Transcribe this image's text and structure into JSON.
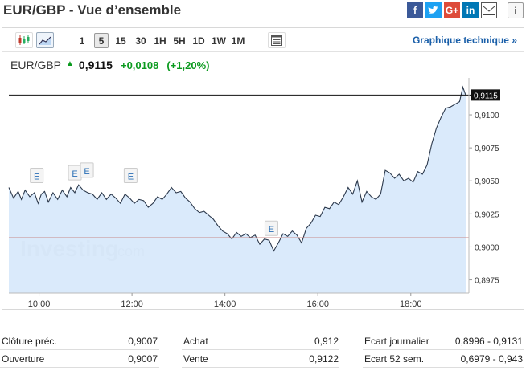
{
  "title": "EUR/GBP - Vue d’ensemble",
  "toolbar": {
    "timeframes": [
      "1",
      "5",
      "15",
      "30",
      "1H",
      "5H",
      "1D",
      "1W",
      "1M"
    ],
    "active_timeframe": "5",
    "technical_link": "Graphique technique »"
  },
  "quote": {
    "pair": "EUR/GBP",
    "price": "0,9115",
    "change": "+0,0108",
    "change_pct": "(+1,20%)"
  },
  "chart_data": {
    "type": "area",
    "watermark": "Investing",
    "watermark_suffix": ".com",
    "x_ticks": [
      "10:00",
      "12:00",
      "14:00",
      "16:00",
      "18:00"
    ],
    "y_ticks": [
      "0,8975",
      "0,9000",
      "0,9025",
      "0,9050",
      "0,9075",
      "0,9100"
    ],
    "ylim": [
      0.8965,
      0.9128
    ],
    "xlim": [
      9.35,
      19.25
    ],
    "last_price_label": "0,9115",
    "last_price": 0.9115,
    "prev_close_line": 0.9007,
    "event_marker_label": "E",
    "event_markers": [
      {
        "time": 9.95,
        "value": 0.9045
      },
      {
        "time": 10.77,
        "value": 0.9047
      },
      {
        "time": 11.03,
        "value": 0.9049
      },
      {
        "time": 11.97,
        "value": 0.9045
      },
      {
        "time": 15.0,
        "value": 0.9005
      }
    ],
    "series": [
      {
        "x": [
          9.35,
          9.45,
          9.55,
          9.62,
          9.7,
          9.8,
          9.9,
          9.98,
          10.05,
          10.12,
          10.2,
          10.3,
          10.4,
          10.5,
          10.6,
          10.68,
          10.77,
          10.85,
          10.95,
          11.05,
          11.15,
          11.25,
          11.35,
          11.45,
          11.55,
          11.65,
          11.75,
          11.85,
          11.95,
          12.05,
          12.15,
          12.25,
          12.35,
          12.45,
          12.55,
          12.65,
          12.75,
          12.85,
          12.95,
          13.05,
          13.15,
          13.25,
          13.35,
          13.45,
          13.55,
          13.65,
          13.75,
          13.85,
          13.95,
          14.05,
          14.15,
          14.25,
          14.35,
          14.45,
          14.55,
          14.65,
          14.75,
          14.85,
          14.95,
          15.05,
          15.15,
          15.25,
          15.35,
          15.45,
          15.55,
          15.65,
          15.75,
          15.85,
          15.95,
          16.05,
          16.15,
          16.25,
          16.35,
          16.45,
          16.55,
          16.65,
          16.75,
          16.85,
          16.95,
          17.05,
          17.15,
          17.25,
          17.35,
          17.45,
          17.55,
          17.65,
          17.75,
          17.85,
          17.95,
          18.05,
          18.15,
          18.25,
          18.35,
          18.45,
          18.55,
          18.65,
          18.75,
          18.85,
          18.95,
          19.05,
          19.12,
          19.18
        ],
        "y": [
          0.9045,
          0.9037,
          0.9042,
          0.9036,
          0.9043,
          0.9038,
          0.9041,
          0.9033,
          0.904,
          0.9042,
          0.9034,
          0.9041,
          0.9036,
          0.9043,
          0.9038,
          0.9045,
          0.9041,
          0.9047,
          0.9043,
          0.9041,
          0.904,
          0.9036,
          0.9041,
          0.9036,
          0.904,
          0.9037,
          0.9033,
          0.904,
          0.9037,
          0.9033,
          0.9036,
          0.9035,
          0.903,
          0.9033,
          0.9038,
          0.9036,
          0.904,
          0.9045,
          0.9041,
          0.9042,
          0.9037,
          0.9034,
          0.9029,
          0.9026,
          0.9027,
          0.9024,
          0.9021,
          0.9016,
          0.9012,
          0.901,
          0.9006,
          0.9011,
          0.9008,
          0.901,
          0.9007,
          0.9009,
          0.9002,
          0.9006,
          0.9005,
          0.8997,
          0.9003,
          0.901,
          0.9008,
          0.9012,
          0.9009,
          0.9003,
          0.9014,
          0.9018,
          0.9024,
          0.9023,
          0.903,
          0.9029,
          0.9034,
          0.9032,
          0.9038,
          0.9045,
          0.904,
          0.905,
          0.9034,
          0.9042,
          0.9038,
          0.9036,
          0.904,
          0.9058,
          0.9056,
          0.9052,
          0.9055,
          0.905,
          0.9052,
          0.9049,
          0.9057,
          0.9055,
          0.9062,
          0.9078,
          0.909,
          0.9098,
          0.9105,
          0.9106,
          0.9108,
          0.911,
          0.9121,
          0.9115
        ]
      }
    ]
  },
  "stats": [
    [
      {
        "label": "Clôture préc.",
        "value": "0,9007"
      },
      {
        "label": "Achat",
        "value": "0,912"
      },
      {
        "label": "Ecart journalier",
        "value": "0,8996 - 0,9131"
      }
    ],
    [
      {
        "label": "Ouverture",
        "value": "0,9007"
      },
      {
        "label": "Vente",
        "value": "0,9122"
      },
      {
        "label": "Ecart 52 sem.",
        "value": "0,6979 - 0,943"
      }
    ]
  ]
}
